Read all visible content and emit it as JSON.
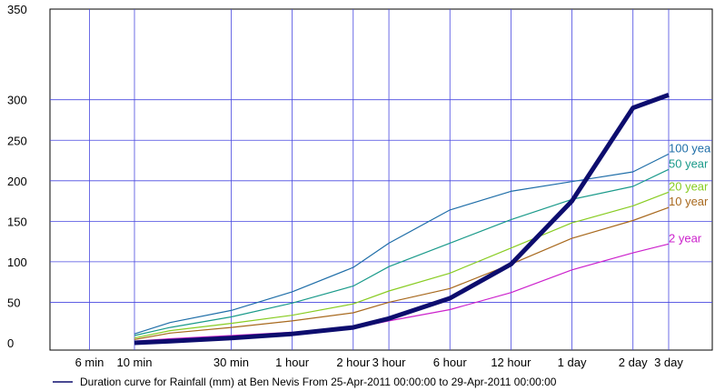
{
  "chart_data": {
    "type": "line",
    "title": "",
    "xlabel": "",
    "ylabel": "",
    "ylim": [
      0,
      350
    ],
    "y_ticks": [
      0,
      50,
      100,
      150,
      200,
      250,
      300,
      350
    ],
    "x_ticks": [
      "6 min",
      "10 min",
      "30 min",
      "1 hour",
      "2 hour",
      "3 hour",
      "6 hour",
      "12 hour",
      "1 day",
      "2 day",
      "3 day"
    ],
    "grid": true,
    "legend_position": "bottom",
    "legend": "Duration curve for Rainfall (mm) at Ben Nevis From 25-Apr-2011 00:00:00 to 29-Apr-2011 00:00:00",
    "series": [
      {
        "label": "100 yea",
        "color": "#1f6ea8",
        "x": [
          "10 min",
          "15 min",
          "30 min",
          "1 hour",
          "2 hour",
          "3 hour",
          "6 hour",
          "12 hour",
          "1 day",
          "2 day",
          "3 day"
        ],
        "values": [
          11,
          25,
          40,
          63,
          93,
          123,
          164,
          187,
          199,
          211,
          233
        ]
      },
      {
        "label": "50 year",
        "color": "#1a9a8a",
        "x": [
          "10 min",
          "15 min",
          "30 min",
          "1 hour",
          "2 hour",
          "3 hour",
          "6 hour",
          "12 hour",
          "1 day",
          "2 day",
          "3 day"
        ],
        "values": [
          9,
          19,
          32,
          49,
          70,
          94,
          123,
          152,
          177,
          193,
          214
        ]
      },
      {
        "label": "20 year",
        "color": "#88cc22",
        "x": [
          "10 min",
          "15 min",
          "30 min",
          "1 hour",
          "2 hour",
          "3 hour",
          "6 hour",
          "12 hour",
          "1 day",
          "2 day",
          "3 day"
        ],
        "values": [
          6,
          15,
          24,
          34,
          48,
          64,
          86,
          117,
          148,
          169,
          186
        ]
      },
      {
        "label": "10 year",
        "color": "#a8691e",
        "x": [
          "10 min",
          "15 min",
          "30 min",
          "1 hour",
          "2 hour",
          "3 hour",
          "6 hour",
          "12 hour",
          "1 day",
          "2 day",
          "3 day"
        ],
        "values": [
          4,
          12,
          19,
          27,
          37,
          50,
          67,
          97,
          129,
          151,
          167
        ]
      },
      {
        "label": "2 year",
        "color": "#cc22cc",
        "x": [
          "10 min",
          "15 min",
          "30 min",
          "1 hour",
          "2 hour",
          "3 hour",
          "6 hour",
          "12 hour",
          "1 day",
          "2 day",
          "3 day"
        ],
        "values": [
          2,
          5,
          9,
          13,
          18,
          27,
          41,
          62,
          90,
          111,
          122
        ]
      },
      {
        "label": "",
        "color": "#0d0d6e",
        "x": [
          "10 min",
          "15 min",
          "30 min",
          "1 hour",
          "2 hour",
          "3 hour",
          "6 hour",
          "12 hour",
          "1 day",
          "2 day",
          "3 day"
        ],
        "values": [
          0,
          2,
          6,
          11,
          19,
          30,
          55,
          97,
          175,
          290,
          306
        ]
      }
    ]
  }
}
